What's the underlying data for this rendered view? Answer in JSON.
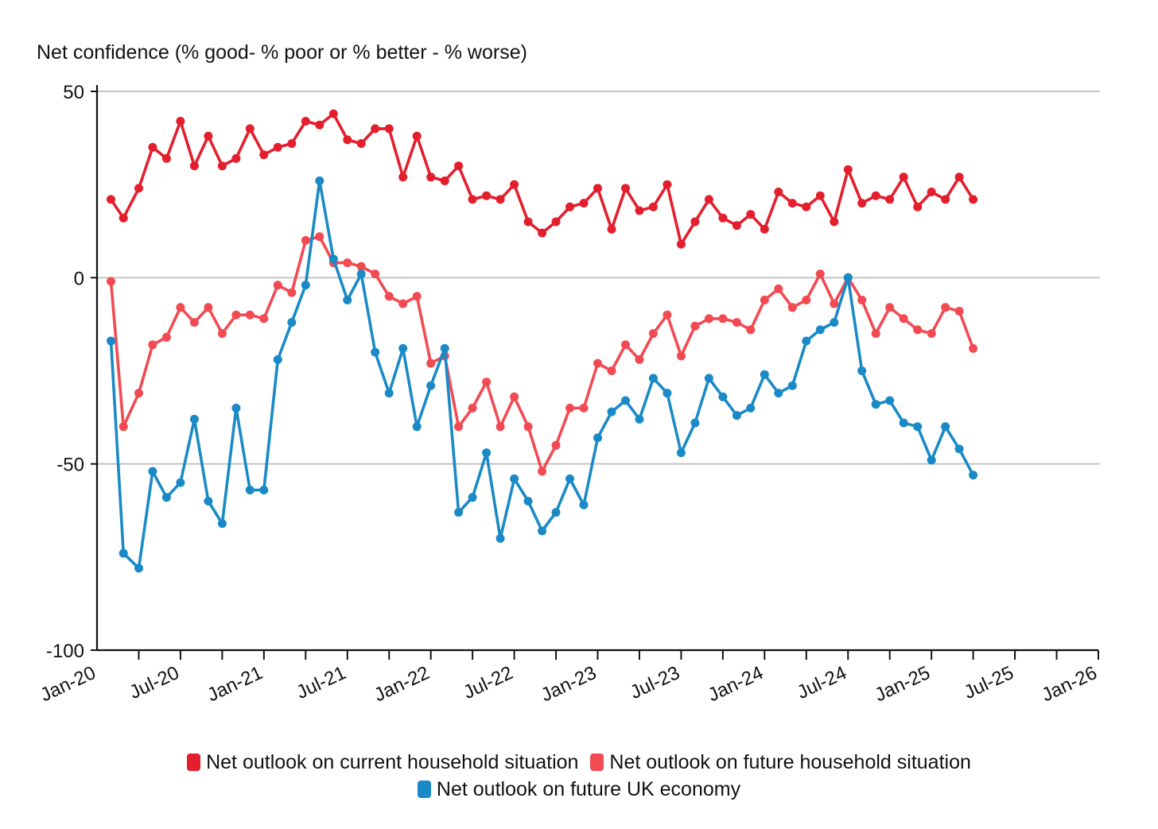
{
  "chart_data": {
    "type": "line",
    "title": "",
    "ylabel": "Net confidence (% good- % poor or % better - % worse)",
    "xlabel": "",
    "ylim": [
      -100,
      50
    ],
    "yticks": [
      50,
      0,
      -50,
      -100
    ],
    "xlim_months": [
      0,
      72
    ],
    "xticks": [
      {
        "m": 0,
        "label": "Jan-20"
      },
      {
        "m": 6,
        "label": "Jul-20"
      },
      {
        "m": 12,
        "label": "Jan-21"
      },
      {
        "m": 18,
        "label": "Jul-21"
      },
      {
        "m": 24,
        "label": "Jan-22"
      },
      {
        "m": 30,
        "label": "Jul-22"
      },
      {
        "m": 36,
        "label": "Jan-23"
      },
      {
        "m": 42,
        "label": "Jul-23"
      },
      {
        "m": 48,
        "label": "Jan-24"
      },
      {
        "m": 54,
        "label": "Jul-24"
      },
      {
        "m": 60,
        "label": "Jan-25"
      },
      {
        "m": 66,
        "label": "Jul-25"
      },
      {
        "m": 72,
        "label": "Jan-26"
      }
    ],
    "grid": true,
    "legend_position": "bottom",
    "months": [
      1,
      1.9,
      3,
      4,
      5,
      6,
      7,
      8,
      9,
      10,
      11,
      12,
      13,
      14,
      15,
      16,
      17,
      18,
      19,
      20,
      21,
      22,
      23,
      24,
      25,
      26,
      27,
      28,
      29,
      30,
      31,
      32,
      33,
      34,
      35,
      36,
      37,
      38,
      39,
      40,
      41,
      42,
      43,
      44,
      45,
      46,
      47,
      48,
      49,
      50,
      51,
      52,
      53,
      54,
      55,
      56,
      57,
      58,
      59,
      60,
      61,
      62,
      63
    ],
    "series": [
      {
        "name": "Net outlook on current household situation",
        "color": "#e31e2d",
        "values": [
          21,
          16,
          24,
          35,
          32,
          42,
          30,
          38,
          30,
          32,
          40,
          33,
          35,
          36,
          42,
          41,
          44,
          37,
          36,
          40,
          40,
          27,
          38,
          27,
          26,
          30,
          21,
          22,
          21,
          25,
          15,
          12,
          15,
          19,
          20,
          24,
          13,
          24,
          18,
          19,
          25,
          9,
          15,
          21,
          16,
          14,
          17,
          13,
          23,
          20,
          19,
          22,
          15,
          29,
          20,
          22,
          21,
          27,
          19,
          23,
          21,
          27,
          21
        ]
      },
      {
        "name": "Net outlook on future household situation",
        "color": "#f24a52",
        "values": [
          -1,
          -40,
          -31,
          -18,
          -16,
          -8,
          -12,
          -8,
          -15,
          -10,
          -10,
          -11,
          -2,
          -4,
          10,
          11,
          4,
          4,
          3,
          1,
          -5,
          -7,
          -5,
          -23,
          -21,
          -40,
          -35,
          -28,
          -40,
          -32,
          -40,
          -52,
          -45,
          -35,
          -35,
          -23,
          -25,
          -18,
          -22,
          -15,
          -10,
          -21,
          -13,
          -11,
          -11,
          -12,
          -14,
          -6,
          -3,
          -8,
          -6,
          1,
          -7,
          0,
          -6,
          -15,
          -8,
          -11,
          -14,
          -15,
          -8,
          -9,
          -19
        ]
      },
      {
        "name": "Net outlook on future UK economy",
        "color": "#1a8ac6",
        "values": [
          -17,
          -74,
          -78,
          -52,
          -59,
          -55,
          -38,
          -60,
          -66,
          -35,
          -57,
          -57,
          -22,
          -12,
          -2,
          26,
          5,
          -6,
          1,
          -20,
          -31,
          -19,
          -40,
          -29,
          -19,
          -63,
          -59,
          -47,
          -70,
          -54,
          -60,
          -68,
          -63,
          -54,
          -61,
          -43,
          -36,
          -33,
          -38,
          -27,
          -31,
          -47,
          -39,
          -27,
          -32,
          -37,
          -35,
          -26,
          -31,
          -29,
          -17,
          -14,
          -12,
          0,
          -25,
          -34,
          -33,
          -39,
          -40,
          -49,
          -40,
          -46,
          -53
        ]
      }
    ]
  },
  "legend": {
    "row1": [
      "Net outlook on current household situation",
      "Net outlook on future household situation"
    ],
    "row2": [
      "Net outlook on future UK economy"
    ]
  }
}
